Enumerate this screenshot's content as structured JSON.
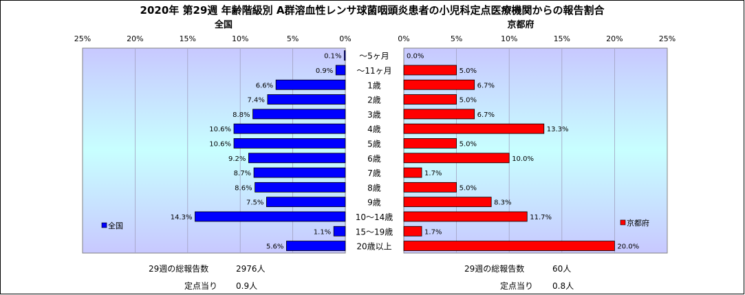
{
  "title": "2020年 第29週 年齢階級別 A群溶血性レンサ球菌咽頭炎患者の小児科定点医療機関からの報告割合",
  "colors": {
    "national": "#0000ff",
    "kyoto": "#ff0000",
    "plot_bg_top": "#c8c8ff",
    "plot_bg_mid": "#c8ffff"
  },
  "chart_data": [
    {
      "type": "bar",
      "orientation": "horizontal-reversed",
      "title": "全国",
      "legend": "全国",
      "legend_position": "left",
      "xlim": [
        0,
        25
      ],
      "ticks": [
        "25%",
        "20%",
        "15%",
        "10%",
        "5%",
        "0%"
      ],
      "categories": [
        "〜5ヶ月",
        "〜11ヶ月",
        "1歳",
        "2歳",
        "3歳",
        "4歳",
        "5歳",
        "6歳",
        "7歳",
        "8歳",
        "9歳",
        "10〜14歳",
        "15〜19歳",
        "20歳以上"
      ],
      "values": [
        0.1,
        0.9,
        6.6,
        7.4,
        8.8,
        10.6,
        10.6,
        9.2,
        8.7,
        8.6,
        7.5,
        14.3,
        1.1,
        5.6
      ],
      "labels": [
        "0.1%",
        "0.9%",
        "6.6%",
        "7.4%",
        "8.8%",
        "10.6%",
        "10.6%",
        "9.2%",
        "8.7%",
        "8.6%",
        "7.5%",
        "14.3%",
        "1.1%",
        "5.6%"
      ]
    },
    {
      "type": "bar",
      "orientation": "horizontal",
      "title": "京都府",
      "legend": "京都府",
      "legend_position": "right",
      "xlim": [
        0,
        25
      ],
      "ticks": [
        "0%",
        "5%",
        "10%",
        "15%",
        "20%",
        "25%"
      ],
      "categories": [
        "〜5ヶ月",
        "〜11ヶ月",
        "1歳",
        "2歳",
        "3歳",
        "4歳",
        "5歳",
        "6歳",
        "7歳",
        "8歳",
        "9歳",
        "10〜14歳",
        "15〜19歳",
        "20歳以上"
      ],
      "values": [
        0.0,
        5.0,
        6.7,
        5.0,
        6.7,
        13.3,
        5.0,
        10.0,
        1.7,
        5.0,
        8.3,
        11.7,
        1.7,
        20.0
      ],
      "labels": [
        "0.0%",
        "5.0%",
        "6.7%",
        "5.0%",
        "6.7%",
        "13.3%",
        "5.0%",
        "10.0%",
        "1.7%",
        "5.0%",
        "8.3%",
        "11.7%",
        "1.7%",
        "20.0%"
      ]
    }
  ],
  "footer": {
    "national_total_label": "29週の総報告数",
    "national_total_value": "2976人",
    "national_per_label": "定点当り",
    "national_per_value": "0.9人",
    "kyoto_total_label": "29週の総報告数",
    "kyoto_total_value": "60人",
    "kyoto_per_label": "定点当り",
    "kyoto_per_value": "0.8人"
  }
}
